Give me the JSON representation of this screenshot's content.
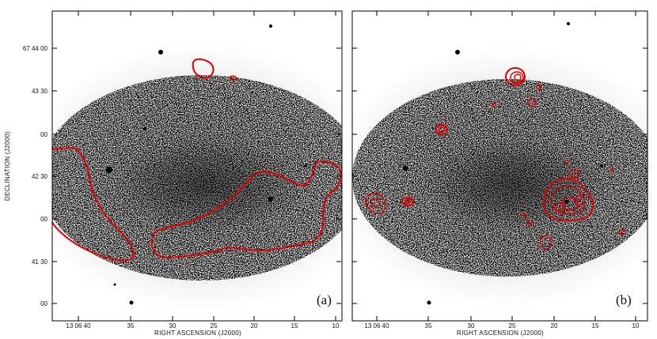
{
  "figure": {
    "y_axis_title": "DECLINATION (J2000)",
    "panels": [
      {
        "label": "(a)",
        "x_axis_title": "RIGHT ASCENSION (J2000)",
        "x_ticks": [
          "13 06 40",
          "35",
          "30",
          "25",
          "20",
          "15",
          "10"
        ],
        "y_ticks": [
          "67 44 00",
          "43 30",
          "00",
          "42 30",
          "00",
          "41 30",
          "00"
        ]
      },
      {
        "label": "(b)",
        "x_axis_title": "RIGHT ASCENSION (J2000)",
        "x_ticks": [
          "13 06 40",
          "35",
          "30",
          "25",
          "20",
          "15",
          "10"
        ]
      }
    ],
    "colors": {
      "contour": "#e00000",
      "frame": "#000000",
      "background": "#ffffff"
    }
  }
}
